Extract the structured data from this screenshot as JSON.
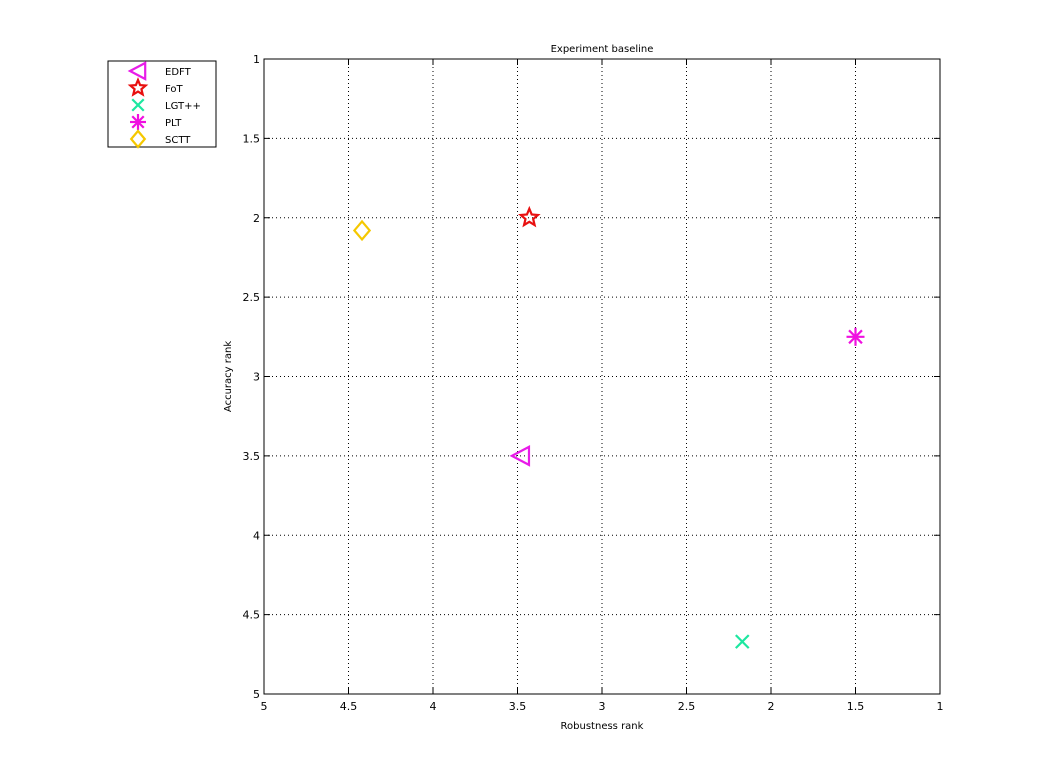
{
  "chart_data": {
    "type": "scatter",
    "title": "Experiment baseline",
    "xlabel": "Robustness rank",
    "ylabel": "Accuracy rank",
    "xlim": [
      5,
      1
    ],
    "ylim": [
      1,
      5
    ],
    "x_reversed": true,
    "y_reversed": true,
    "x_ticks": [
      "5",
      "4.5",
      "4",
      "3.5",
      "3",
      "2.5",
      "2",
      "1.5",
      "1"
    ],
    "y_ticks": [
      "1",
      "1.5",
      "2",
      "2.5",
      "3",
      "3.5",
      "4",
      "4.5",
      "5"
    ],
    "grid": true,
    "legend_position": "outside-top-left",
    "series": [
      {
        "name": "EDFT",
        "marker": "triangle-left",
        "color": "#e81ce8",
        "x": [
          3.48
        ],
        "y": [
          3.5
        ]
      },
      {
        "name": "FoT",
        "marker": "pentagram",
        "color": "#e81010",
        "x": [
          3.43
        ],
        "y": [
          2.0
        ]
      },
      {
        "name": "LGT++",
        "marker": "x",
        "color": "#1de7a0",
        "x": [
          2.17
        ],
        "y": [
          4.67
        ]
      },
      {
        "name": "PLT",
        "marker": "asterisk",
        "color": "#f010e0",
        "x": [
          1.5
        ],
        "y": [
          2.75
        ]
      },
      {
        "name": "SCTT",
        "marker": "diamond",
        "color": "#f5c800",
        "x": [
          4.42
        ],
        "y": [
          2.08
        ]
      }
    ]
  }
}
